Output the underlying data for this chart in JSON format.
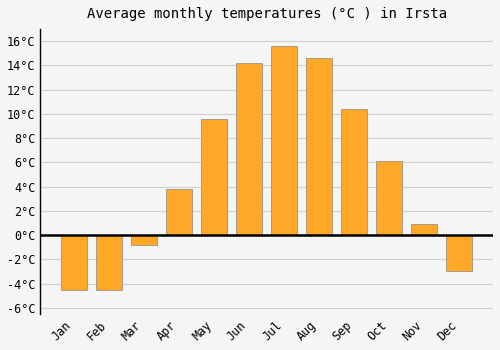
{
  "months": [
    "Jan",
    "Feb",
    "Mar",
    "Apr",
    "May",
    "Jun",
    "Jul",
    "Aug",
    "Sep",
    "Oct",
    "Nov",
    "Dec"
  ],
  "values": [
    -4.5,
    -4.5,
    -0.8,
    3.8,
    9.6,
    14.2,
    15.6,
    14.6,
    10.4,
    6.1,
    0.9,
    -3.0
  ],
  "bar_color": "#FFA726",
  "bar_edge_color": "#888888",
  "title": "Average monthly temperatures (°C ) in Irsta",
  "ylim": [
    -6.5,
    17
  ],
  "yticks": [
    -6,
    -4,
    -2,
    0,
    2,
    4,
    6,
    8,
    10,
    12,
    14,
    16
  ],
  "background_color": "#f5f5f5",
  "plot_bg_color": "#f5f5f5",
  "grid_color": "#d0d0d0",
  "title_fontsize": 10,
  "tick_fontsize": 8.5,
  "bar_width": 0.75
}
